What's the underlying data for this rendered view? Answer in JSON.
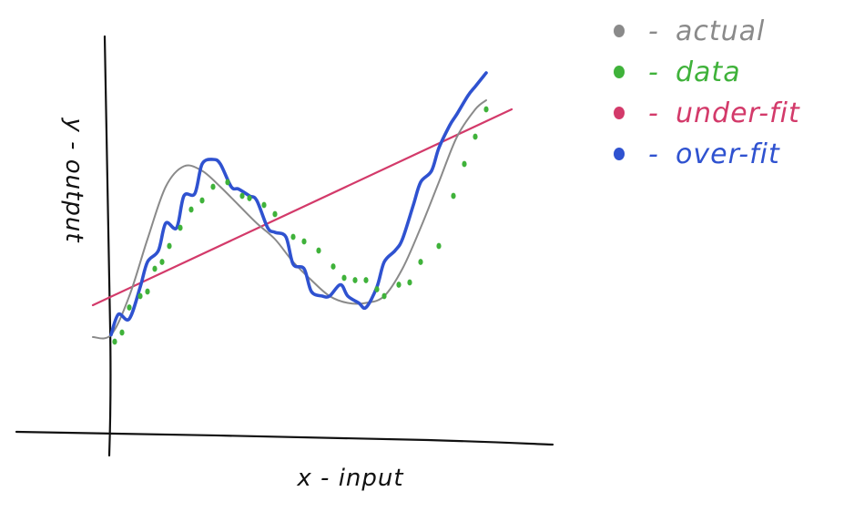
{
  "chart_data": {
    "type": "line",
    "xlabel": "x - input",
    "ylabel": "y - output",
    "grid": false,
    "legend_placement": "top-right",
    "legend": [
      {
        "key": "actual",
        "marker": "-",
        "label": "actual",
        "color": "#8a8a8a"
      },
      {
        "key": "data",
        "marker": "-",
        "label": "data",
        "color": "#3fb23a"
      },
      {
        "key": "underfit",
        "marker": "-",
        "label": "under-fit",
        "color": "#d33a6a"
      },
      {
        "key": "overfit",
        "marker": "-",
        "label": "over-fit",
        "color": "#2f52d0"
      }
    ],
    "series": [
      {
        "key": "actual",
        "color": "#8a8a8a",
        "x": [
          -0.05,
          0,
          0.05,
          0.1,
          0.15,
          0.2,
          0.25,
          0.3,
          0.35,
          0.4,
          0.45,
          0.5,
          0.55,
          0.6,
          0.65,
          0.7,
          0.75,
          0.8,
          0.85,
          0.9,
          0.95,
          1.0,
          1.03
        ],
        "y": [
          0.12,
          0.13,
          0.3,
          0.55,
          0.78,
          0.87,
          0.85,
          0.78,
          0.7,
          0.62,
          0.55,
          0.45,
          0.37,
          0.3,
          0.27,
          0.27,
          0.3,
          0.42,
          0.6,
          0.8,
          1.0,
          1.12,
          1.16
        ]
      },
      {
        "key": "underfit",
        "color": "#d33a6a",
        "x": [
          -0.05,
          1.1
        ],
        "y": [
          0.26,
          1.12
        ]
      },
      {
        "key": "overfit",
        "color": "#2f52d0",
        "x": [
          0,
          0.02,
          0.05,
          0.08,
          0.1,
          0.13,
          0.15,
          0.18,
          0.2,
          0.23,
          0.25,
          0.28,
          0.3,
          0.33,
          0.35,
          0.38,
          0.4,
          0.43,
          0.45,
          0.48,
          0.5,
          0.53,
          0.55,
          0.58,
          0.6,
          0.63,
          0.65,
          0.68,
          0.7,
          0.73,
          0.75,
          0.78,
          0.8,
          0.83,
          0.85,
          0.88,
          0.9,
          0.93,
          0.95,
          0.98,
          1.0,
          1.02,
          1.03
        ],
        "y": [
          0.13,
          0.22,
          0.2,
          0.34,
          0.45,
          0.5,
          0.62,
          0.6,
          0.74,
          0.75,
          0.88,
          0.9,
          0.88,
          0.78,
          0.77,
          0.74,
          0.72,
          0.6,
          0.58,
          0.56,
          0.44,
          0.42,
          0.32,
          0.3,
          0.3,
          0.35,
          0.3,
          0.27,
          0.25,
          0.34,
          0.45,
          0.5,
          0.55,
          0.7,
          0.8,
          0.85,
          0.95,
          1.05,
          1.1,
          1.18,
          1.22,
          1.26,
          1.28
        ]
      }
    ],
    "points": {
      "key": "data",
      "color": "#3fb23a",
      "x": [
        0.01,
        0.03,
        0.05,
        0.08,
        0.1,
        0.12,
        0.14,
        0.16,
        0.19,
        0.22,
        0.25,
        0.28,
        0.32,
        0.36,
        0.38,
        0.42,
        0.45,
        0.5,
        0.53,
        0.57,
        0.61,
        0.64,
        0.67,
        0.7,
        0.73,
        0.75,
        0.79,
        0.82,
        0.85,
        0.9,
        0.94,
        0.97,
        1.0,
        1.03
      ],
      "y": [
        0.1,
        0.14,
        0.25,
        0.3,
        0.32,
        0.42,
        0.45,
        0.52,
        0.6,
        0.68,
        0.72,
        0.78,
        0.8,
        0.74,
        0.73,
        0.7,
        0.66,
        0.56,
        0.54,
        0.5,
        0.43,
        0.38,
        0.37,
        0.37,
        0.33,
        0.3,
        0.35,
        0.36,
        0.45,
        0.52,
        0.74,
        0.88,
        1.0,
        1.12
      ]
    }
  }
}
